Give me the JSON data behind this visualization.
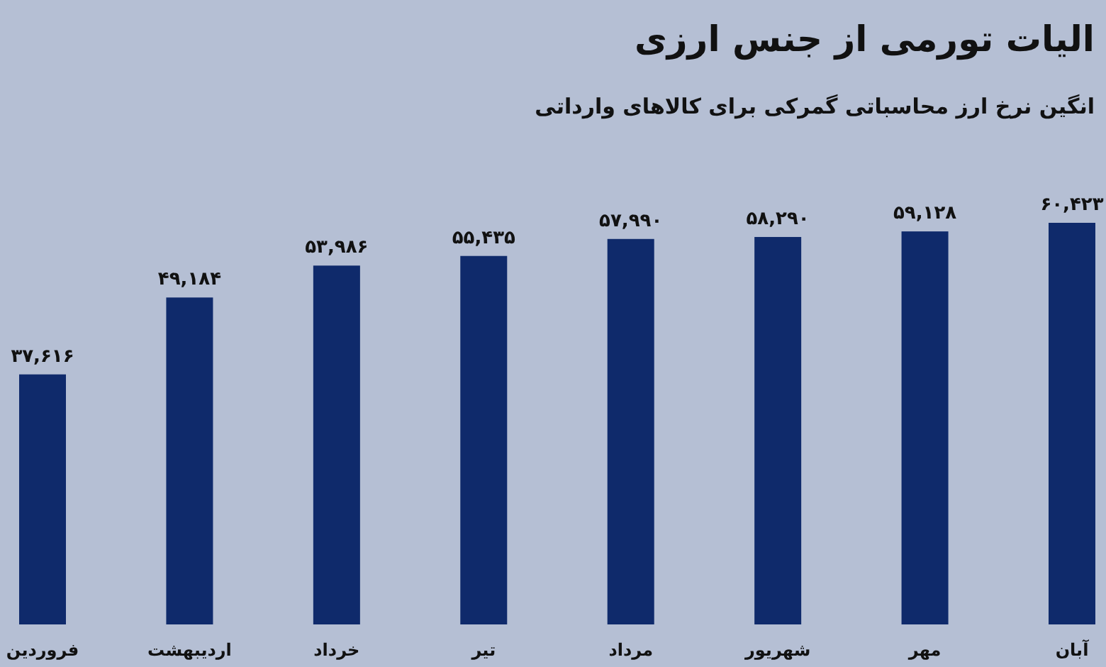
{
  "chart_data": {
    "type": "bar",
    "title": "الیات تورمی از جنس ارزی",
    "subtitle": "انگین نرخ ارز محاسباتی گمرکی برای کالاهای وارداتی",
    "categories": [
      "فروردین",
      "اردیبهشت",
      "خرداد",
      "تیر",
      "مرداد",
      "شهریور",
      "مهر",
      "آبان"
    ],
    "values": [
      37616,
      49184,
      53986,
      55435,
      57990,
      58290,
      59128,
      60423
    ],
    "value_labels": [
      "۳۷,۶۱۶",
      "۴۹,۱۸۴",
      "۵۳,۹۸۶",
      "۵۵,۴۳۵",
      "۵۷,۹۹۰",
      "۵۸,۲۹۰",
      "۵۹,۱۲۸",
      "۶۰,۴۲۳"
    ],
    "color": "#0f2a6b"
  }
}
